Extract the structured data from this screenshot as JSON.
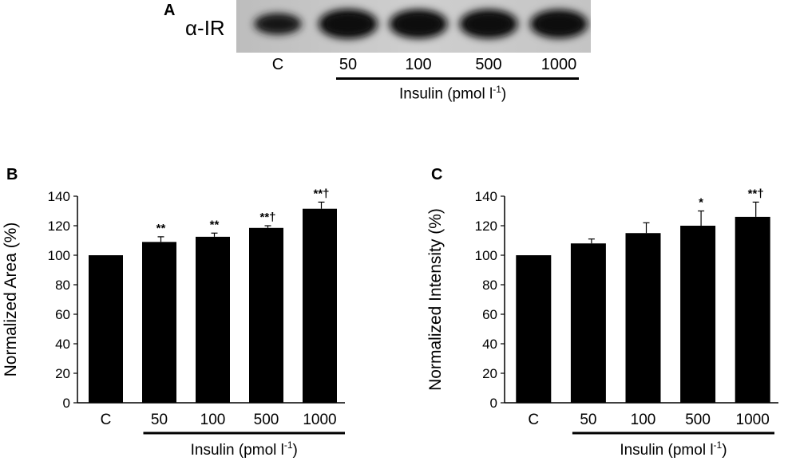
{
  "panel_a": {
    "letter": "A",
    "blot_label": "α-IR",
    "lanes": [
      "C",
      "50",
      "100",
      "500",
      "1000"
    ],
    "insulin_label": "Insulin (pmol l",
    "insulin_sup": "-1",
    "insulin_close": ")",
    "band_intensity": [
      0.55,
      0.95,
      0.92,
      0.92,
      0.9
    ]
  },
  "chart_data": [
    {
      "panel": "B",
      "type": "bar",
      "categories": [
        "C",
        "50",
        "100",
        "500",
        "1000"
      ],
      "values": [
        100,
        109,
        112.5,
        118.5,
        131.5
      ],
      "errors": [
        0,
        3.5,
        2.5,
        1.5,
        4.5
      ],
      "significance": [
        "",
        "**",
        "**",
        "**†",
        "**†"
      ],
      "ylabel": "Normalized Area (%)",
      "ylim": [
        0,
        140
      ],
      "yticks": [
        0,
        20,
        40,
        60,
        80,
        100,
        120,
        140
      ],
      "xlabel": "Insulin (pmol l",
      "xlabel_sup": "-1",
      "xlabel_close": ")",
      "bar_color": "#000000"
    },
    {
      "panel": "C",
      "type": "bar",
      "categories": [
        "C",
        "50",
        "100",
        "500",
        "1000"
      ],
      "values": [
        100,
        108,
        115,
        120,
        126
      ],
      "errors": [
        0,
        3,
        7,
        10,
        10
      ],
      "significance": [
        "",
        "",
        "",
        "*",
        "**†"
      ],
      "ylabel": "Normalized Intensity (%)",
      "ylim": [
        0,
        140
      ],
      "yticks": [
        0,
        20,
        40,
        60,
        80,
        100,
        120,
        140
      ],
      "xlabel": "Insulin (pmol l",
      "xlabel_sup": "-1",
      "xlabel_close": ")",
      "bar_color": "#000000"
    }
  ]
}
